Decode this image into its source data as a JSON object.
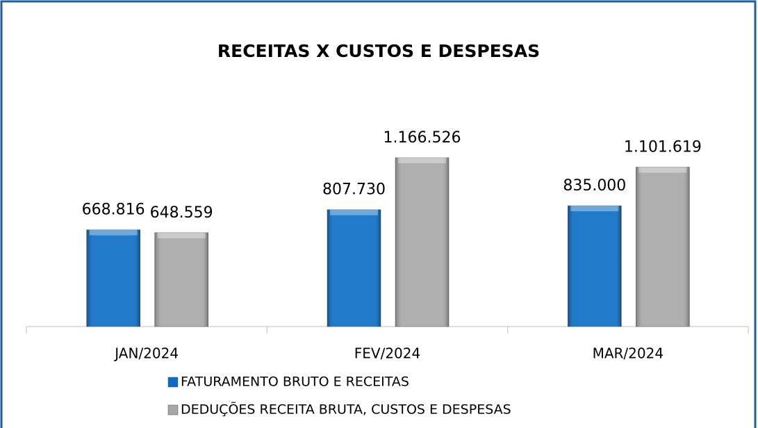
{
  "chart_data": {
    "type": "bar",
    "title": "RECEITAS X CUSTOS E DESPESAS",
    "categories": [
      "JAN/2024",
      "FEV/2024",
      "MAR/2024"
    ],
    "series": [
      {
        "name": "FATURAMENTO BRUTO E RECEITAS",
        "color": "#0a6cc4",
        "values": [
          668816,
          807730,
          835000
        ],
        "value_labels": [
          "668.816",
          "807.730",
          "835.000"
        ]
      },
      {
        "name": "DEDUÇÕES RECEITA BRUTA, CUSTOS E DESPESAS",
        "color": "#a6a6a6",
        "values": [
          648559,
          1166526,
          1101619
        ],
        "value_labels": [
          "648.559",
          "1.166.526",
          "1.101.619"
        ]
      }
    ],
    "legend": "bottom"
  }
}
